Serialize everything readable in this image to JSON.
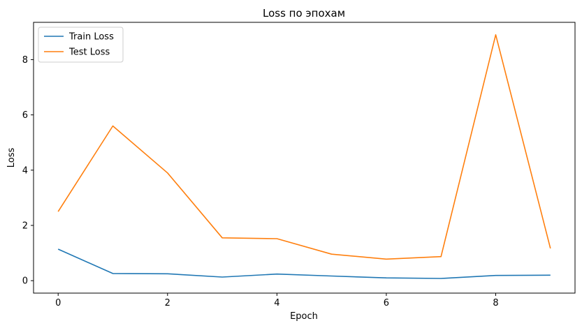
{
  "chart_data": {
    "type": "line",
    "title": "Loss по эпохам",
    "xlabel": "Epoch",
    "ylabel": "Loss",
    "x": [
      0,
      1,
      2,
      3,
      4,
      5,
      6,
      7,
      8,
      9
    ],
    "xlim": [
      -0.45,
      9.45
    ],
    "ylim": [
      -0.45,
      9.35
    ],
    "xticks": [
      0,
      2,
      4,
      6,
      8
    ],
    "yticks": [
      0,
      2,
      4,
      6,
      8
    ],
    "grid": false,
    "legend_position": "top-left",
    "series": [
      {
        "name": "Train Loss",
        "color": "#1f77b4",
        "values": [
          1.14,
          0.26,
          0.25,
          0.13,
          0.24,
          0.17,
          0.1,
          0.08,
          0.19,
          0.2
        ]
      },
      {
        "name": "Test Loss",
        "color": "#ff7f0e",
        "values": [
          2.5,
          5.6,
          3.9,
          1.55,
          1.52,
          0.96,
          0.78,
          0.87,
          8.9,
          1.17
        ]
      }
    ]
  }
}
